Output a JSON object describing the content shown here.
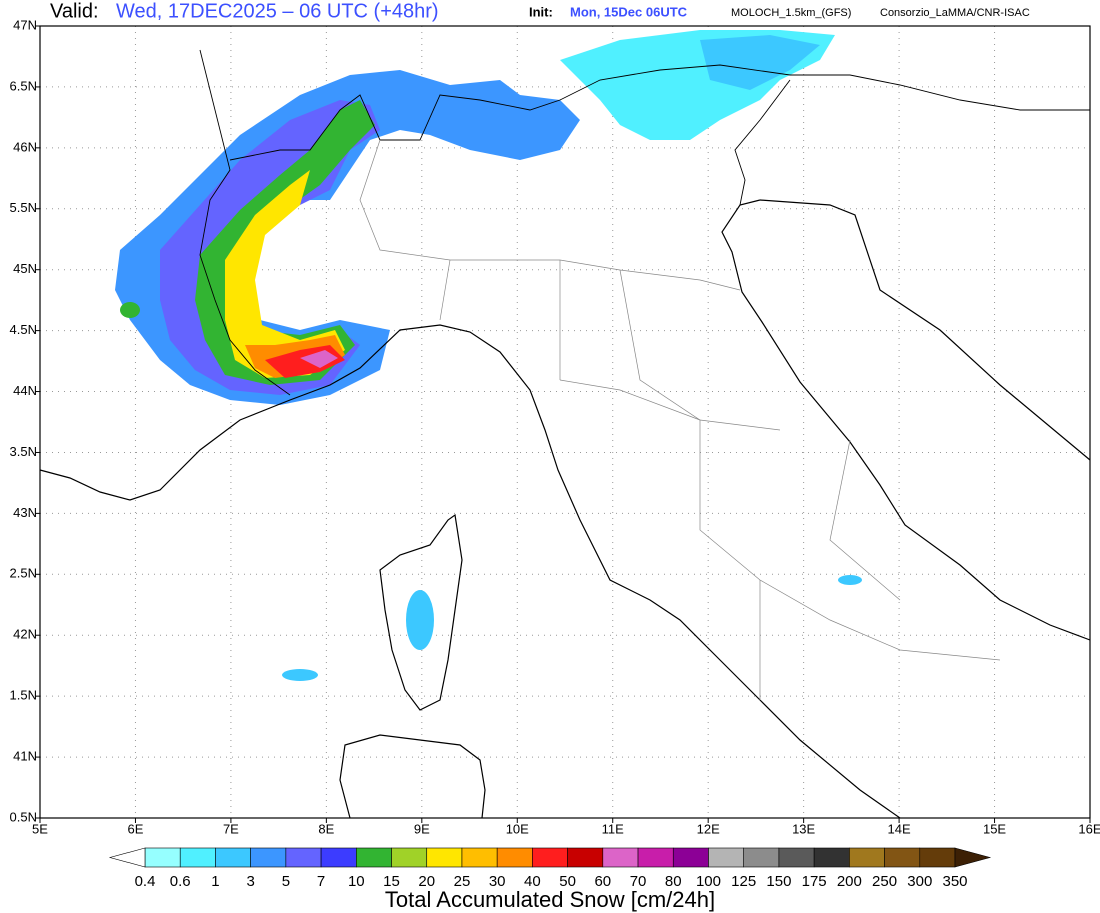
{
  "header": {
    "valid_label": "Valid:",
    "valid_time": "Wed, 17DEC2025 – 06 UTC (+48hr)",
    "init_label": "Init:",
    "init_time": "Mon, 15Dec 06UTC",
    "model": "MOLOCH_1.5km_(GFS)",
    "credit": "Consorzio_LaMMA/CNR-ISAC"
  },
  "map": {
    "lonlim": [
      5,
      16
    ],
    "latlim": [
      40.5,
      47
    ],
    "lonticks": [
      {
        "value": 5,
        "label": "5E"
      },
      {
        "value": 6,
        "label": "6E"
      },
      {
        "value": 7,
        "label": "7E"
      },
      {
        "value": 8,
        "label": "8E"
      },
      {
        "value": 9,
        "label": "9E"
      },
      {
        "value": 10,
        "label": "10E"
      },
      {
        "value": 11,
        "label": "11E"
      },
      {
        "value": 12,
        "label": "12E"
      },
      {
        "value": 13,
        "label": "13E"
      },
      {
        "value": 14,
        "label": "14E"
      },
      {
        "value": 15,
        "label": "15E"
      },
      {
        "value": 16,
        "label": "16E"
      }
    ],
    "latticks": [
      {
        "value": 47,
        "label": "47N"
      },
      {
        "value": 46.5,
        "label": "6.5N"
      },
      {
        "value": 46,
        "label": "46N"
      },
      {
        "value": 45.5,
        "label": "5.5N"
      },
      {
        "value": 45,
        "label": "45N"
      },
      {
        "value": 44.5,
        "label": "4.5N"
      },
      {
        "value": 44,
        "label": "44N"
      },
      {
        "value": 43.5,
        "label": "3.5N"
      },
      {
        "value": 43,
        "label": "43N"
      },
      {
        "value": 42.5,
        "label": "2.5N"
      },
      {
        "value": 42,
        "label": "42N"
      },
      {
        "value": 41.5,
        "label": "1.5N"
      },
      {
        "value": 41,
        "label": "41N"
      },
      {
        "value": 40.5,
        "label": "0.5N"
      }
    ]
  },
  "colorbar": {
    "title": "Total Accumulated Snow [cm/24h]",
    "levels": [
      0.4,
      0.6,
      1,
      3,
      5,
      7,
      10,
      15,
      20,
      25,
      30,
      40,
      50,
      60,
      70,
      80,
      100,
      125,
      150,
      175,
      200,
      250,
      300,
      350
    ],
    "colors": [
      "#96ffff",
      "#50f0ff",
      "#3cc8ff",
      "#3c96ff",
      "#6464ff",
      "#3c3cff",
      "#32b432",
      "#a0d228",
      "#ffe600",
      "#ffbe00",
      "#ff8c00",
      "#ff1e1e",
      "#c80000",
      "#dc64c8",
      "#c81eaa",
      "#8c0096",
      "#b4b4b4",
      "#8c8c8c",
      "#5a5a5a",
      "#323232",
      "#a0781e",
      "#825514",
      "#643c0a"
    ],
    "under_color": "#ffffff",
    "over_color": "#3c2005"
  }
}
